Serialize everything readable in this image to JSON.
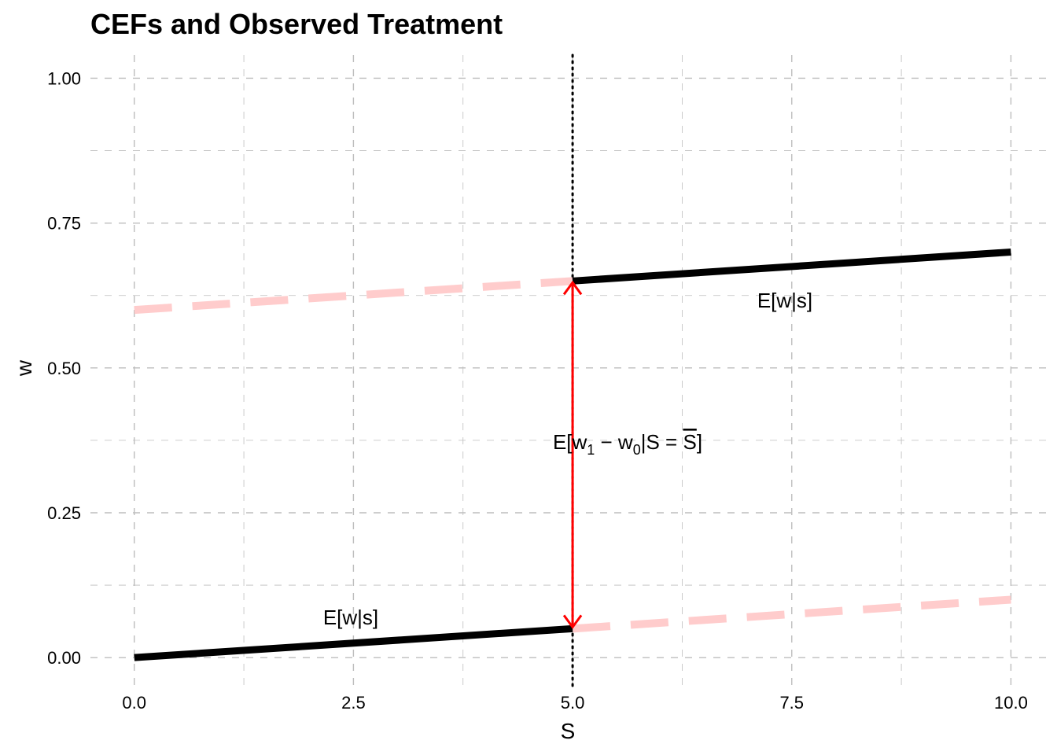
{
  "chart_data": {
    "type": "line",
    "title": "CEFs and Observed Treatment",
    "xlabel": "S",
    "ylabel": "w",
    "xlim": [
      -0.5,
      10.4
    ],
    "ylim": [
      -0.05,
      1.04
    ],
    "x_ticks": [
      0,
      2.5,
      5,
      7.5,
      10
    ],
    "x_tick_labels": [
      "0.0",
      "2.5",
      "5.0",
      "7.5",
      "10.0"
    ],
    "y_ticks": [
      0,
      0.25,
      0.5,
      0.75,
      1
    ],
    "y_tick_labels": [
      "0.00",
      "0.25",
      "0.50",
      "0.75",
      "1.00"
    ],
    "x_minor": [
      1.25,
      3.75,
      6.25,
      8.75
    ],
    "y_minor": [
      0.125,
      0.375,
      0.625,
      0.875
    ],
    "grid": true,
    "cutoff": 5,
    "colors": {
      "observed": "#000000",
      "counterfactual": "#ffcccc",
      "arrow": "#ff0000",
      "grid": "#bdbdbd"
    },
    "series": [
      {
        "style": "observed",
        "x": [
          0,
          5
        ],
        "y": [
          0,
          0.05
        ]
      },
      {
        "style": "counterfactual",
        "x": [
          5,
          10
        ],
        "y": [
          0.05,
          0.1
        ]
      },
      {
        "style": "counterfactual",
        "x": [
          0,
          5
        ],
        "y": [
          0.6,
          0.65
        ]
      },
      {
        "style": "observed",
        "x": [
          5,
          10
        ],
        "y": [
          0.65,
          0.7
        ]
      }
    ],
    "arrow": {
      "x": 5,
      "y_from": 0.05,
      "y_to": 0.65
    },
    "annotations": [
      {
        "text": "E[w|s]",
        "x": 2.5,
        "y": 0.065
      },
      {
        "text": "E[w|s]",
        "x": 7.5,
        "y": 0.615
      },
      {
        "text": "E[w₁ − w₀|S = S̅]",
        "x": 7,
        "y": 0.37,
        "parts": {
          "lead": "E[w",
          "sub1": "1",
          "minus": " − w",
          "sub0": "0",
          "tail": "|S = ",
          "sbar": "S",
          "close": "]"
        }
      }
    ]
  }
}
